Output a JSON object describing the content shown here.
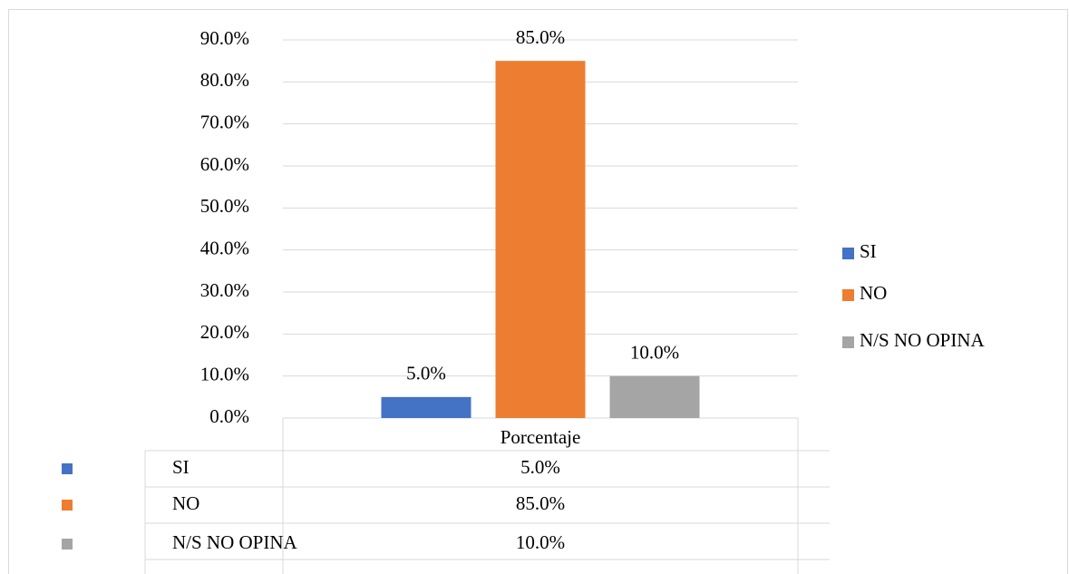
{
  "chart_data": {
    "type": "bar",
    "categories": [
      "Porcentaje"
    ],
    "series": [
      {
        "name": "SI",
        "color": "#4472c4",
        "values": [
          5
        ],
        "value_labels": [
          "5.0%"
        ]
      },
      {
        "name": "NO",
        "color": "#ed7d31",
        "values": [
          85
        ],
        "value_labels": [
          "85.0%"
        ]
      },
      {
        "name": "N/S NO OPINA",
        "color": "#a5a5a5",
        "values": [
          10
        ],
        "value_labels": [
          "10.0%"
        ]
      }
    ],
    "ylim": [
      0,
      90
    ],
    "yticks": [
      {
        "value": 0,
        "label": "0.0%"
      },
      {
        "value": 10,
        "label": "10.0%"
      },
      {
        "value": 20,
        "label": "20.0%"
      },
      {
        "value": 30,
        "label": "30.0%"
      },
      {
        "value": 40,
        "label": "40.0%"
      },
      {
        "value": 50,
        "label": "50.0%"
      },
      {
        "value": 60,
        "label": "60.0%"
      },
      {
        "value": 70,
        "label": "70.0%"
      },
      {
        "value": 80,
        "label": "80.0%"
      },
      {
        "value": 90,
        "label": "90.0%"
      }
    ],
    "grid": true,
    "legend": "right",
    "data_table": true
  }
}
